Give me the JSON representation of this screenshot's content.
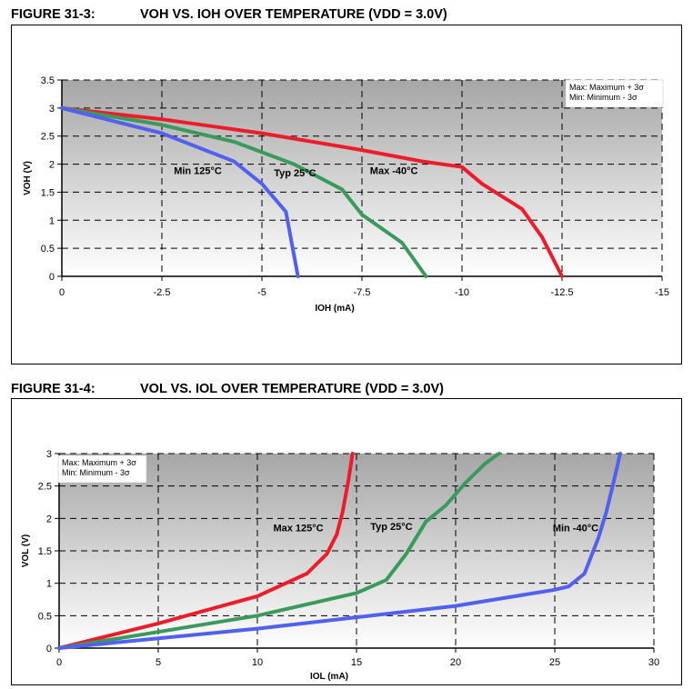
{
  "colors": {
    "red": "#ee1c2a",
    "green": "#3a9a5c",
    "blue": "#5160ee",
    "plot_top": "#a6a6a6",
    "plot_bottom": "#ffffff"
  },
  "figures": [
    {
      "number": "FIGURE 31-3:",
      "title": "VOH VS. IOH OVER TEMPERATURE (VDD = 3.0V)",
      "legend_box": [
        "Max: Maximum + 3σ",
        "Min: Minimum - 3σ"
      ]
    },
    {
      "number": "FIGURE 31-4:",
      "title": "VOL VS. IOL OVER TEMPERATURE (VDD = 3.0V)",
      "legend_box": [
        "Max: Maximum + 3σ",
        "Min: Minimum - 3σ"
      ]
    }
  ],
  "chart_data": [
    {
      "type": "line",
      "title": "VOH VS. IOH OVER TEMPERATURE (VDD = 3.0V)",
      "xlabel": "IOH (mA)",
      "ylabel": "VOH (V)",
      "xlim": [
        0,
        -15
      ],
      "ylim": [
        0,
        3.5
      ],
      "xticks": [
        0,
        -2.5,
        -5,
        -7.5,
        -10,
        -12.5,
        -15
      ],
      "xtick_labels": [
        "0",
        "-2.5",
        "-5",
        "-7.5",
        "-10",
        "-12.5",
        "-15"
      ],
      "yticks": [
        0,
        0.5,
        1,
        1.5,
        2,
        2.5,
        3,
        3.5
      ],
      "ytick_labels": [
        "0",
        "0.5",
        "1",
        "1.5",
        "2",
        "2.5",
        "3",
        "3.5"
      ],
      "grid": true,
      "series": [
        {
          "name": "Max -40°C",
          "color": "red",
          "label_at": [
            -7.7,
            1.82
          ],
          "x": [
            0,
            -2.5,
            -5,
            -7.5,
            -9,
            -10,
            -10.5,
            -11.5,
            -12,
            -12.5
          ],
          "y": [
            3.0,
            2.8,
            2.55,
            2.25,
            2.05,
            1.95,
            1.65,
            1.2,
            0.7,
            0.0
          ]
        },
        {
          "name": "Typ 25°C",
          "color": "green",
          "label_at": [
            -5.3,
            1.78
          ],
          "x": [
            0,
            -2.5,
            -4.3,
            -5.8,
            -7.0,
            -7.5,
            -8.5,
            -9.1
          ],
          "y": [
            3.0,
            2.7,
            2.4,
            2.0,
            1.55,
            1.1,
            0.6,
            0.0
          ]
        },
        {
          "name": "Min 125°C",
          "color": "blue",
          "label_at": [
            -2.8,
            1.82
          ],
          "x": [
            0,
            -2.5,
            -4.3,
            -5.0,
            -5.6,
            -5.9
          ],
          "y": [
            3.0,
            2.55,
            2.05,
            1.65,
            1.15,
            0.0
          ]
        }
      ]
    },
    {
      "type": "line",
      "title": "VOL VS. IOL OVER TEMPERATURE (VDD = 3.0V)",
      "xlabel": "IOL (mA)",
      "ylabel": "VOL (V)",
      "xlim": [
        0,
        30
      ],
      "ylim": [
        0,
        3
      ],
      "xticks": [
        0,
        5,
        10,
        15,
        20,
        25,
        30
      ],
      "xtick_labels": [
        "0",
        "5",
        "10",
        "15",
        "20",
        "25",
        "30"
      ],
      "yticks": [
        0,
        0.5,
        1,
        1.5,
        2,
        2.5,
        3
      ],
      "ytick_labels": [
        "0",
        "0.5",
        "1",
        "1.5",
        "2",
        "2.5",
        "3"
      ],
      "grid": true,
      "series": [
        {
          "name": "Max 125°C",
          "color": "red",
          "label_at": [
            10.8,
            1.8
          ],
          "x": [
            0,
            5,
            10,
            12.5,
            13.5,
            14.0,
            14.3,
            14.6,
            14.8
          ],
          "y": [
            0.0,
            0.38,
            0.8,
            1.15,
            1.45,
            1.75,
            2.1,
            2.6,
            3.0
          ]
        },
        {
          "name": "Typ 25°C",
          "color": "green",
          "label_at": [
            15.7,
            1.82
          ],
          "x": [
            0,
            10,
            15,
            16.5,
            17.5,
            18.5,
            19.5,
            20.5,
            21.5,
            22.2
          ],
          "y": [
            0.0,
            0.5,
            0.85,
            1.05,
            1.45,
            1.95,
            2.2,
            2.55,
            2.85,
            3.0
          ]
        },
        {
          "name": "Min -40°C",
          "color": "blue",
          "label_at": [
            24.9,
            1.8
          ],
          "x": [
            0,
            10,
            20,
            24,
            25,
            25.7,
            26.5,
            27.2,
            27.6,
            28.0,
            28.3
          ],
          "y": [
            0.0,
            0.3,
            0.65,
            0.85,
            0.9,
            0.95,
            1.15,
            1.7,
            2.1,
            2.6,
            3.0
          ]
        }
      ]
    }
  ]
}
